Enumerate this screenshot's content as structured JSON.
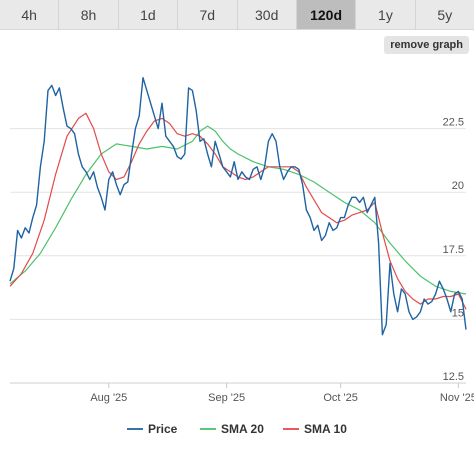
{
  "timeframes": [
    {
      "label": "4h",
      "active": false
    },
    {
      "label": "8h",
      "active": false
    },
    {
      "label": "1d",
      "active": false
    },
    {
      "label": "7d",
      "active": false
    },
    {
      "label": "30d",
      "active": false
    },
    {
      "label": "120d",
      "active": true
    },
    {
      "label": "1y",
      "active": false
    },
    {
      "label": "5y",
      "active": false
    }
  ],
  "remove_graph_label": "remove graph",
  "chart_data": {
    "type": "line",
    "ylim": [
      12.5,
      25
    ],
    "yticks": [
      12.5,
      15,
      17.5,
      20,
      22.5
    ],
    "xticks": [
      {
        "label": "Aug '25",
        "x": 26
      },
      {
        "label": "Sep '25",
        "x": 57
      },
      {
        "label": "Oct '25",
        "x": 87
      },
      {
        "label": "Nov '25",
        "x": 118
      }
    ],
    "xlim": [
      0,
      120
    ],
    "grid": true,
    "legend_position": "bottom",
    "series": [
      {
        "name": "Price",
        "color": "#1f63a3",
        "points": [
          [
            0,
            16.5
          ],
          [
            1,
            17
          ],
          [
            2,
            18.5
          ],
          [
            3,
            18.2
          ],
          [
            4,
            18.6
          ],
          [
            5,
            18.4
          ],
          [
            6,
            19
          ],
          [
            7,
            19.5
          ],
          [
            8,
            21
          ],
          [
            9,
            22
          ],
          [
            10,
            24
          ],
          [
            11,
            24.2
          ],
          [
            12,
            23.8
          ],
          [
            13,
            24.1
          ],
          [
            14,
            23.3
          ],
          [
            15,
            22.6
          ],
          [
            16,
            22.5
          ],
          [
            17,
            22.3
          ],
          [
            18,
            21.5
          ],
          [
            19,
            21
          ],
          [
            20,
            20.8
          ],
          [
            21,
            20.5
          ],
          [
            22,
            20.8
          ],
          [
            23,
            20.2
          ],
          [
            24,
            19.8
          ],
          [
            25,
            19.3
          ],
          [
            26,
            20.5
          ],
          [
            27,
            20.8
          ],
          [
            28,
            20.3
          ],
          [
            29,
            19.9
          ],
          [
            30,
            20.3
          ],
          [
            31,
            20.4
          ],
          [
            32,
            21.5
          ],
          [
            33,
            22.5
          ],
          [
            34,
            23
          ],
          [
            35,
            24.5
          ],
          [
            36,
            24
          ],
          [
            37,
            23.5
          ],
          [
            38,
            23
          ],
          [
            39,
            22.5
          ],
          [
            40,
            23.5
          ],
          [
            41,
            22.2
          ],
          [
            42,
            22
          ],
          [
            43,
            21.8
          ],
          [
            44,
            21.4
          ],
          [
            45,
            21.3
          ],
          [
            46,
            21.5
          ],
          [
            47,
            24.1
          ],
          [
            48,
            24
          ],
          [
            49,
            23.2
          ],
          [
            50,
            22
          ],
          [
            51,
            22.1
          ],
          [
            52,
            21.5
          ],
          [
            53,
            21
          ],
          [
            54,
            22
          ],
          [
            55,
            21.5
          ],
          [
            56,
            21
          ],
          [
            57,
            20.8
          ],
          [
            58,
            20.6
          ],
          [
            59,
            21.2
          ],
          [
            60,
            20.5
          ],
          [
            61,
            20.8
          ],
          [
            62,
            20.6
          ],
          [
            63,
            20.5
          ],
          [
            64,
            20.9
          ],
          [
            65,
            21
          ],
          [
            66,
            20.5
          ],
          [
            67,
            21
          ],
          [
            68,
            22
          ],
          [
            69,
            22.3
          ],
          [
            70,
            22
          ],
          [
            71,
            21
          ],
          [
            72,
            20.5
          ],
          [
            73,
            20.8
          ],
          [
            74,
            21
          ],
          [
            75,
            21
          ],
          [
            76,
            20.9
          ],
          [
            77,
            20.3
          ],
          [
            78,
            19.3
          ],
          [
            79,
            19
          ],
          [
            80,
            18.5
          ],
          [
            81,
            18.7
          ],
          [
            82,
            18.1
          ],
          [
            83,
            18.3
          ],
          [
            84,
            18.8
          ],
          [
            85,
            18.5
          ],
          [
            86,
            18.6
          ],
          [
            87,
            19
          ],
          [
            88,
            19
          ],
          [
            89,
            19.5
          ],
          [
            90,
            19.8
          ],
          [
            91,
            19.8
          ],
          [
            92,
            19.6
          ],
          [
            93,
            19.8
          ],
          [
            94,
            19.2
          ],
          [
            95,
            19.5
          ],
          [
            96,
            19.8
          ],
          [
            97,
            18
          ],
          [
            98,
            14.4
          ],
          [
            99,
            14.8
          ],
          [
            100,
            17.2
          ],
          [
            101,
            16
          ],
          [
            102,
            15.3
          ],
          [
            103,
            16.2
          ],
          [
            104,
            16
          ],
          [
            105,
            15.3
          ],
          [
            106,
            15
          ],
          [
            107,
            15.1
          ],
          [
            108,
            15.3
          ],
          [
            109,
            15.8
          ],
          [
            110,
            15.6
          ],
          [
            111,
            15.7
          ],
          [
            112,
            16
          ],
          [
            113,
            16.5
          ],
          [
            114,
            16.2
          ],
          [
            115,
            15.8
          ],
          [
            116,
            15.3
          ],
          [
            117,
            16
          ],
          [
            118,
            16.1
          ],
          [
            119,
            15.8
          ],
          [
            120,
            14.6
          ]
        ]
      },
      {
        "name": "SMA 20",
        "color": "#4cc26b",
        "points": [
          [
            0,
            16.4
          ],
          [
            4,
            16.9
          ],
          [
            8,
            17.6
          ],
          [
            12,
            18.6
          ],
          [
            16,
            19.7
          ],
          [
            20,
            20.7
          ],
          [
            24,
            21.5
          ],
          [
            28,
            21.9
          ],
          [
            32,
            21.8
          ],
          [
            36,
            21.7
          ],
          [
            40,
            21.8
          ],
          [
            44,
            21.7
          ],
          [
            48,
            22
          ],
          [
            50,
            22.4
          ],
          [
            52,
            22.6
          ],
          [
            54,
            22.4
          ],
          [
            56,
            22
          ],
          [
            58,
            21.7
          ],
          [
            60,
            21.5
          ],
          [
            64,
            21.2
          ],
          [
            68,
            21
          ],
          [
            72,
            20.9
          ],
          [
            76,
            20.7
          ],
          [
            80,
            20.4
          ],
          [
            84,
            20
          ],
          [
            88,
            19.6
          ],
          [
            92,
            19.3
          ],
          [
            96,
            18.8
          ],
          [
            100,
            18
          ],
          [
            104,
            17.3
          ],
          [
            108,
            16.7
          ],
          [
            112,
            16.3
          ],
          [
            116,
            16.1
          ],
          [
            120,
            16
          ]
        ]
      },
      {
        "name": "SMA 10",
        "color": "#e04b4b",
        "points": [
          [
            0,
            16.3
          ],
          [
            3,
            16.8
          ],
          [
            6,
            17.6
          ],
          [
            9,
            18.9
          ],
          [
            12,
            20.7
          ],
          [
            15,
            22.2
          ],
          [
            18,
            22.9
          ],
          [
            20,
            23.1
          ],
          [
            22,
            22.5
          ],
          [
            24,
            21.5
          ],
          [
            26,
            20.8
          ],
          [
            28,
            20.5
          ],
          [
            30,
            20.6
          ],
          [
            32,
            21.2
          ],
          [
            34,
            21.9
          ],
          [
            36,
            22.4
          ],
          [
            38,
            22.8
          ],
          [
            40,
            22.9
          ],
          [
            42,
            22.7
          ],
          [
            44,
            22.3
          ],
          [
            46,
            22.2
          ],
          [
            48,
            22.3
          ],
          [
            50,
            22.2
          ],
          [
            52,
            21.9
          ],
          [
            54,
            21.5
          ],
          [
            56,
            21
          ],
          [
            58,
            20.8
          ],
          [
            60,
            20.6
          ],
          [
            62,
            20.5
          ],
          [
            64,
            20.6
          ],
          [
            66,
            20.8
          ],
          [
            68,
            21
          ],
          [
            70,
            21
          ],
          [
            72,
            21
          ],
          [
            74,
            21
          ],
          [
            76,
            20.8
          ],
          [
            78,
            20.2
          ],
          [
            80,
            19.7
          ],
          [
            82,
            19.2
          ],
          [
            84,
            19
          ],
          [
            86,
            18.8
          ],
          [
            88,
            18.9
          ],
          [
            90,
            19.1
          ],
          [
            92,
            19.2
          ],
          [
            94,
            19.3
          ],
          [
            96,
            19.6
          ],
          [
            98,
            18.4
          ],
          [
            100,
            17.3
          ],
          [
            102,
            16.6
          ],
          [
            104,
            16.1
          ],
          [
            106,
            15.8
          ],
          [
            108,
            15.6
          ],
          [
            110,
            15.8
          ],
          [
            112,
            15.8
          ],
          [
            114,
            15.9
          ],
          [
            116,
            15.9
          ],
          [
            118,
            16
          ],
          [
            120,
            15.4
          ]
        ]
      }
    ]
  }
}
